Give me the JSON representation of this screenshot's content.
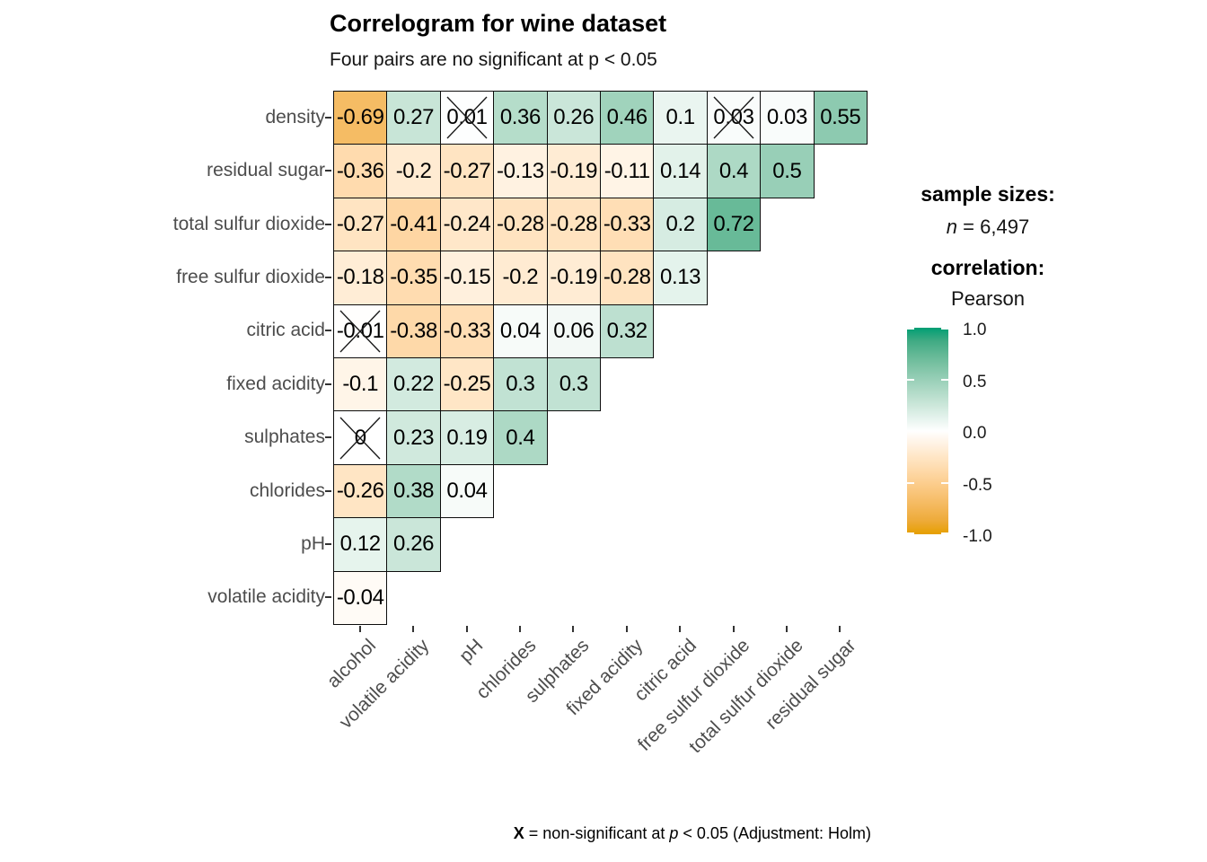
{
  "title": "Correlogram for wine dataset",
  "subtitle": "Four pairs are no significant at p < 0.05",
  "caption": {
    "x_symbol": "X",
    "mid": " = non-significant at ",
    "p_symbol": "p",
    "rest": " < 0.05 (Adjustment: Holm)"
  },
  "legend": {
    "sample_sizes_title": "sample sizes:",
    "n_symbol": "n",
    "n_value": " = 6,497",
    "correlation_title": "correlation:",
    "correlation_method": "Pearson"
  },
  "chart_data": {
    "type": "heatmap",
    "title": "Correlogram for wine dataset",
    "subtitle": "Four pairs are no significant at p < 0.05",
    "x_categories": [
      "alcohol",
      "volatile acidity",
      "pH",
      "chlorides",
      "sulphates",
      "fixed acidity",
      "citric acid",
      "free sulfur dioxide",
      "total sulfur dioxide",
      "residual sugar"
    ],
    "y_categories": [
      "density",
      "residual sugar",
      "total sulfur dioxide",
      "free sulfur dioxide",
      "citric acid",
      "fixed acidity",
      "sulphates",
      "chlorides",
      "pH",
      "volatile acidity"
    ],
    "rows": [
      {
        "label": "density",
        "values": [
          -0.69,
          0.27,
          0.01,
          0.36,
          0.26,
          0.46,
          0.1,
          0.03,
          0.03,
          0.55
        ],
        "non_significant": [
          2,
          7
        ]
      },
      {
        "label": "residual sugar",
        "values": [
          -0.36,
          -0.2,
          -0.27,
          -0.13,
          -0.19,
          -0.11,
          0.14,
          0.4,
          0.5
        ],
        "non_significant": []
      },
      {
        "label": "total sulfur dioxide",
        "values": [
          -0.27,
          -0.41,
          -0.24,
          -0.28,
          -0.28,
          -0.33,
          0.2,
          0.72
        ],
        "non_significant": []
      },
      {
        "label": "free sulfur dioxide",
        "values": [
          -0.18,
          -0.35,
          -0.15,
          -0.2,
          -0.19,
          -0.28,
          0.13
        ],
        "non_significant": []
      },
      {
        "label": "citric acid",
        "values": [
          -0.01,
          -0.38,
          -0.33,
          0.04,
          0.06,
          0.32
        ],
        "non_significant": [
          0
        ]
      },
      {
        "label": "fixed acidity",
        "values": [
          -0.1,
          0.22,
          -0.25,
          0.3,
          0.3
        ],
        "non_significant": []
      },
      {
        "label": "sulphates",
        "values": [
          0,
          0.23,
          0.19,
          0.4
        ],
        "non_significant": [
          0
        ]
      },
      {
        "label": "chlorides",
        "values": [
          -0.26,
          0.38,
          0.04
        ],
        "non_significant": []
      },
      {
        "label": "pH",
        "values": [
          0.12,
          0.26
        ],
        "non_significant": []
      },
      {
        "label": "volatile acidity",
        "values": [
          -0.04
        ],
        "non_significant": []
      }
    ],
    "colorscale": {
      "low_color": "#E69F00",
      "mid_color": "#FFFFFF",
      "high_color": "#009E73",
      "domain": [
        -1,
        1
      ],
      "tick_labels": [
        "1.0",
        "0.5",
        "0.0",
        "-0.5",
        "-1.0"
      ],
      "tick_values": [
        1.0,
        0.5,
        0.0,
        -0.5,
        -1.0
      ]
    },
    "legend_position": "right",
    "grid": false
  }
}
